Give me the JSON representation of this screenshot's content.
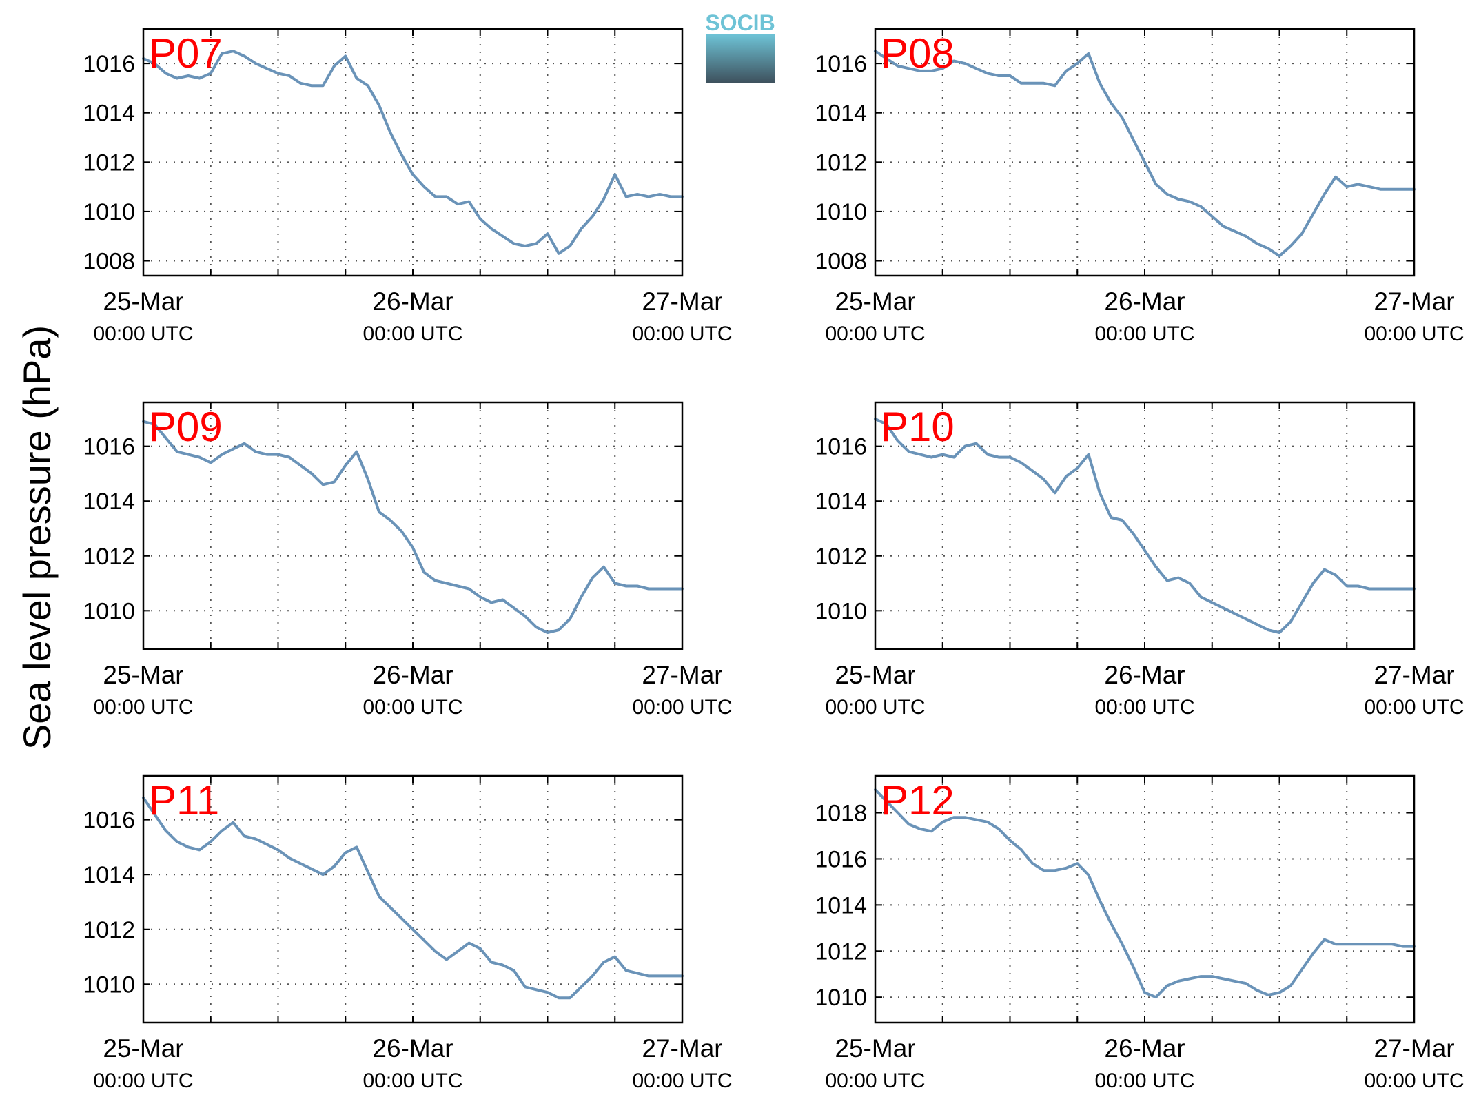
{
  "figure": {
    "ylabel": "Sea level pressure (hPa)",
    "logo_text": "SOCIB"
  },
  "colors": {
    "line": "#6A93B8",
    "station_label": "#FF0000",
    "grid": "#555555",
    "logo_top": "#6EC3D6",
    "logo_bottom": "#3E515D"
  },
  "chart_data": [
    {
      "type": "line",
      "station": "P07",
      "x_ticks": [
        {
          "date": "25-Mar",
          "time": "00:00 UTC"
        },
        {
          "date": "26-Mar",
          "time": "00:00 UTC"
        },
        {
          "date": "27-Mar",
          "time": "00:00 UTC"
        }
      ],
      "xlim_hours": [
        0,
        48
      ],
      "ylim": [
        1007.4,
        1017.4
      ],
      "yticks": [
        1008,
        1010,
        1012,
        1014,
        1016
      ],
      "grid": true,
      "series": [
        {
          "x_hours": [
            0,
            1,
            2,
            3,
            4,
            5,
            6,
            7,
            8,
            9,
            10,
            11,
            12,
            13,
            14,
            15,
            16,
            17,
            18,
            19,
            20,
            21,
            22,
            23,
            24,
            25,
            26,
            27,
            28,
            29,
            30,
            31,
            32,
            33,
            34,
            35,
            36,
            37,
            38,
            39,
            40,
            41,
            42,
            43,
            44,
            45,
            46,
            47,
            48
          ],
          "values": [
            1016.2,
            1016.0,
            1015.6,
            1015.4,
            1015.5,
            1015.4,
            1015.6,
            1016.4,
            1016.5,
            1016.3,
            1016.0,
            1015.8,
            1015.6,
            1015.5,
            1015.2,
            1015.1,
            1015.1,
            1015.9,
            1016.3,
            1015.4,
            1015.1,
            1014.3,
            1013.2,
            1012.3,
            1011.5,
            1011.0,
            1010.6,
            1010.6,
            1010.3,
            1010.4,
            1009.7,
            1009.3,
            1009.0,
            1008.7,
            1008.6,
            1008.7,
            1009.1,
            1008.3,
            1008.6,
            1009.3,
            1009.8,
            1010.5,
            1011.5,
            1010.6,
            1010.7,
            1010.6,
            1010.7,
            1010.6,
            1010.6
          ]
        }
      ]
    },
    {
      "type": "line",
      "station": "P08",
      "x_ticks": [
        {
          "date": "25-Mar",
          "time": "00:00 UTC"
        },
        {
          "date": "26-Mar",
          "time": "00:00 UTC"
        },
        {
          "date": "27-Mar",
          "time": "00:00 UTC"
        }
      ],
      "xlim_hours": [
        0,
        48
      ],
      "ylim": [
        1007.4,
        1017.4
      ],
      "yticks": [
        1008,
        1010,
        1012,
        1014,
        1016
      ],
      "grid": true,
      "series": [
        {
          "x_hours": [
            0,
            1,
            2,
            3,
            4,
            5,
            6,
            7,
            8,
            9,
            10,
            11,
            12,
            13,
            14,
            15,
            16,
            17,
            18,
            19,
            20,
            21,
            22,
            23,
            24,
            25,
            26,
            27,
            28,
            29,
            30,
            31,
            32,
            33,
            34,
            35,
            36,
            37,
            38,
            39,
            40,
            41,
            42,
            43,
            44,
            45,
            46,
            47,
            48
          ],
          "values": [
            1016.5,
            1016.2,
            1015.9,
            1015.8,
            1015.7,
            1015.7,
            1015.8,
            1016.1,
            1016.0,
            1015.8,
            1015.6,
            1015.5,
            1015.5,
            1015.2,
            1015.2,
            1015.2,
            1015.1,
            1015.7,
            1016.0,
            1016.4,
            1015.2,
            1014.4,
            1013.8,
            1012.9,
            1012.0,
            1011.1,
            1010.7,
            1010.5,
            1010.4,
            1010.2,
            1009.8,
            1009.4,
            1009.2,
            1009.0,
            1008.7,
            1008.5,
            1008.2,
            1008.6,
            1009.1,
            1009.9,
            1010.7,
            1011.4,
            1011.0,
            1011.1,
            1011.0,
            1010.9,
            1010.9,
            1010.9,
            1010.9
          ]
        }
      ]
    },
    {
      "type": "line",
      "station": "P09",
      "x_ticks": [
        {
          "date": "25-Mar",
          "time": "00:00 UTC"
        },
        {
          "date": "26-Mar",
          "time": "00:00 UTC"
        },
        {
          "date": "27-Mar",
          "time": "00:00 UTC"
        }
      ],
      "xlim_hours": [
        0,
        48
      ],
      "ylim": [
        1008.6,
        1017.6
      ],
      "yticks": [
        1010,
        1012,
        1014,
        1016
      ],
      "grid": true,
      "series": [
        {
          "x_hours": [
            0,
            1,
            2,
            3,
            4,
            5,
            6,
            7,
            8,
            9,
            10,
            11,
            12,
            13,
            14,
            15,
            16,
            17,
            18,
            19,
            20,
            21,
            22,
            23,
            24,
            25,
            26,
            27,
            28,
            29,
            30,
            31,
            32,
            33,
            34,
            35,
            36,
            37,
            38,
            39,
            40,
            41,
            42,
            43,
            44,
            45,
            46,
            47,
            48
          ],
          "values": [
            1016.9,
            1016.8,
            1016.3,
            1015.8,
            1015.7,
            1015.6,
            1015.4,
            1015.7,
            1015.9,
            1016.1,
            1015.8,
            1015.7,
            1015.7,
            1015.6,
            1015.3,
            1015.0,
            1014.6,
            1014.7,
            1015.3,
            1015.8,
            1014.8,
            1013.6,
            1013.3,
            1012.9,
            1012.3,
            1011.4,
            1011.1,
            1011.0,
            1010.9,
            1010.8,
            1010.5,
            1010.3,
            1010.4,
            1010.1,
            1009.8,
            1009.4,
            1009.2,
            1009.3,
            1009.7,
            1010.5,
            1011.2,
            1011.6,
            1011.0,
            1010.9,
            1010.9,
            1010.8,
            1010.8,
            1010.8,
            1010.8
          ]
        }
      ]
    },
    {
      "type": "line",
      "station": "P10",
      "x_ticks": [
        {
          "date": "25-Mar",
          "time": "00:00 UTC"
        },
        {
          "date": "26-Mar",
          "time": "00:00 UTC"
        },
        {
          "date": "27-Mar",
          "time": "00:00 UTC"
        }
      ],
      "xlim_hours": [
        0,
        48
      ],
      "ylim": [
        1008.6,
        1017.6
      ],
      "yticks": [
        1010,
        1012,
        1014,
        1016
      ],
      "grid": true,
      "series": [
        {
          "x_hours": [
            0,
            1,
            2,
            3,
            4,
            5,
            6,
            7,
            8,
            9,
            10,
            11,
            12,
            13,
            14,
            15,
            16,
            17,
            18,
            19,
            20,
            21,
            22,
            23,
            24,
            25,
            26,
            27,
            28,
            29,
            30,
            31,
            32,
            33,
            34,
            35,
            36,
            37,
            38,
            39,
            40,
            41,
            42,
            43,
            44,
            45,
            46,
            47,
            48
          ],
          "values": [
            1017.0,
            1016.8,
            1016.2,
            1015.8,
            1015.7,
            1015.6,
            1015.7,
            1015.6,
            1016.0,
            1016.1,
            1015.7,
            1015.6,
            1015.6,
            1015.4,
            1015.1,
            1014.8,
            1014.3,
            1014.9,
            1015.2,
            1015.7,
            1014.3,
            1013.4,
            1013.3,
            1012.8,
            1012.2,
            1011.6,
            1011.1,
            1011.2,
            1011.0,
            1010.5,
            1010.3,
            1010.1,
            1009.9,
            1009.7,
            1009.5,
            1009.3,
            1009.2,
            1009.6,
            1010.3,
            1011.0,
            1011.5,
            1011.3,
            1010.9,
            1010.9,
            1010.8,
            1010.8,
            1010.8,
            1010.8,
            1010.8
          ]
        }
      ]
    },
    {
      "type": "line",
      "station": "P11",
      "x_ticks": [
        {
          "date": "25-Mar",
          "time": "00:00 UTC"
        },
        {
          "date": "26-Mar",
          "time": "00:00 UTC"
        },
        {
          "date": "27-Mar",
          "time": "00:00 UTC"
        }
      ],
      "xlim_hours": [
        0,
        48
      ],
      "ylim": [
        1008.6,
        1017.6
      ],
      "yticks": [
        1010,
        1012,
        1014,
        1016
      ],
      "grid": true,
      "series": [
        {
          "x_hours": [
            0,
            1,
            2,
            3,
            4,
            5,
            6,
            7,
            8,
            9,
            10,
            11,
            12,
            13,
            14,
            15,
            16,
            17,
            18,
            19,
            20,
            21,
            22,
            23,
            24,
            25,
            26,
            27,
            28,
            29,
            30,
            31,
            32,
            33,
            34,
            35,
            36,
            37,
            38,
            39,
            40,
            41,
            42,
            43,
            44,
            45,
            46,
            47,
            48
          ],
          "values": [
            1016.8,
            1016.2,
            1015.6,
            1015.2,
            1015.0,
            1014.9,
            1015.2,
            1015.6,
            1015.9,
            1015.4,
            1015.3,
            1015.1,
            1014.9,
            1014.6,
            1014.4,
            1014.2,
            1014.0,
            1014.3,
            1014.8,
            1015.0,
            1014.1,
            1013.2,
            1012.8,
            1012.4,
            1012.0,
            1011.6,
            1011.2,
            1010.9,
            1011.2,
            1011.5,
            1011.3,
            1010.8,
            1010.7,
            1010.5,
            1009.9,
            1009.8,
            1009.7,
            1009.5,
            1009.5,
            1009.9,
            1010.3,
            1010.8,
            1011.0,
            1010.5,
            1010.4,
            1010.3,
            1010.3,
            1010.3,
            1010.3
          ]
        }
      ]
    },
    {
      "type": "line",
      "station": "P12",
      "x_ticks": [
        {
          "date": "25-Mar",
          "time": "00:00 UTC"
        },
        {
          "date": "26-Mar",
          "time": "00:00 UTC"
        },
        {
          "date": "27-Mar",
          "time": "00:00 UTC"
        }
      ],
      "xlim_hours": [
        0,
        48
      ],
      "ylim": [
        1008.9,
        1019.6
      ],
      "yticks": [
        1010,
        1012,
        1014,
        1016,
        1018
      ],
      "grid": true,
      "series": [
        {
          "x_hours": [
            0,
            1,
            2,
            3,
            4,
            5,
            6,
            7,
            8,
            9,
            10,
            11,
            12,
            13,
            14,
            15,
            16,
            17,
            18,
            19,
            20,
            21,
            22,
            23,
            24,
            25,
            26,
            27,
            28,
            29,
            30,
            31,
            32,
            33,
            34,
            35,
            36,
            37,
            38,
            39,
            40,
            41,
            42,
            43,
            44,
            45,
            46,
            47,
            48
          ],
          "values": [
            1019.0,
            1018.5,
            1018.0,
            1017.5,
            1017.3,
            1017.2,
            1017.6,
            1017.8,
            1017.8,
            1017.7,
            1017.6,
            1017.3,
            1016.8,
            1016.4,
            1015.8,
            1015.5,
            1015.5,
            1015.6,
            1015.8,
            1015.3,
            1014.2,
            1013.2,
            1012.3,
            1011.3,
            1010.2,
            1010.0,
            1010.5,
            1010.7,
            1010.8,
            1010.9,
            1010.9,
            1010.8,
            1010.7,
            1010.6,
            1010.3,
            1010.1,
            1010.2,
            1010.5,
            1011.2,
            1011.9,
            1012.5,
            1012.3,
            1012.3,
            1012.3,
            1012.3,
            1012.3,
            1012.3,
            1012.2,
            1012.2
          ]
        }
      ]
    }
  ]
}
